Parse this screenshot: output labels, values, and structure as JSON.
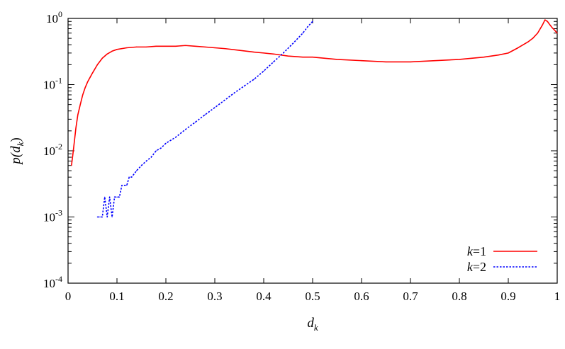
{
  "chart_data": {
    "type": "line",
    "title": "",
    "xlabel": "d_k",
    "ylabel": "p(d_k)",
    "x_scale": "linear",
    "y_scale": "log",
    "xlim": [
      0,
      1
    ],
    "ylim": [
      0.0001,
      1
    ],
    "grid": false,
    "legend_position": "bottom-right",
    "x_ticks": [
      "0",
      "0.1",
      "0.2",
      "0.3",
      "0.4",
      "0.5",
      "0.6",
      "0.7",
      "0.8",
      "0.9",
      "1"
    ],
    "x_tick_values": [
      0,
      0.1,
      0.2,
      0.3,
      0.4,
      0.5,
      0.6,
      0.7,
      0.8,
      0.9,
      1
    ],
    "y_ticks": [
      {
        "value": 0.0001,
        "base": "10",
        "exp": "-4"
      },
      {
        "value": 0.001,
        "base": "10",
        "exp": "-3"
      },
      {
        "value": 0.01,
        "base": "10",
        "exp": "-2"
      },
      {
        "value": 0.1,
        "base": "10",
        "exp": "-1"
      },
      {
        "value": 1,
        "base": "10",
        "exp": "0"
      }
    ],
    "series": [
      {
        "name": "k=1",
        "name_var": "k",
        "name_rest": "=1",
        "color": "#ff0000",
        "style": "solid",
        "x": [
          0.007,
          0.01,
          0.013,
          0.016,
          0.02,
          0.025,
          0.03,
          0.035,
          0.04,
          0.05,
          0.06,
          0.07,
          0.08,
          0.09,
          0.1,
          0.12,
          0.14,
          0.16,
          0.18,
          0.2,
          0.22,
          0.24,
          0.26,
          0.28,
          0.3,
          0.32,
          0.35,
          0.38,
          0.4,
          0.42,
          0.45,
          0.48,
          0.5,
          0.55,
          0.6,
          0.65,
          0.7,
          0.75,
          0.8,
          0.85,
          0.88,
          0.9,
          0.92,
          0.94,
          0.95,
          0.96,
          0.97,
          0.975,
          0.98,
          0.985,
          0.99,
          0.995,
          1.0
        ],
        "y": [
          0.006,
          0.009,
          0.014,
          0.022,
          0.035,
          0.05,
          0.07,
          0.09,
          0.11,
          0.15,
          0.2,
          0.25,
          0.29,
          0.32,
          0.34,
          0.36,
          0.37,
          0.37,
          0.38,
          0.38,
          0.38,
          0.39,
          0.38,
          0.37,
          0.36,
          0.35,
          0.33,
          0.31,
          0.3,
          0.29,
          0.27,
          0.26,
          0.26,
          0.24,
          0.23,
          0.22,
          0.22,
          0.23,
          0.24,
          0.26,
          0.28,
          0.3,
          0.36,
          0.44,
          0.5,
          0.6,
          0.8,
          0.95,
          0.9,
          0.8,
          0.72,
          0.66,
          0.6
        ]
      },
      {
        "name": "k=2",
        "name_var": "k",
        "name_rest": "=2",
        "color": "#0000ff",
        "style": "dotted",
        "x": [
          0.06,
          0.065,
          0.07,
          0.075,
          0.08,
          0.085,
          0.09,
          0.095,
          0.1,
          0.105,
          0.11,
          0.115,
          0.12,
          0.125,
          0.13,
          0.14,
          0.15,
          0.16,
          0.17,
          0.18,
          0.19,
          0.2,
          0.22,
          0.24,
          0.26,
          0.28,
          0.3,
          0.32,
          0.34,
          0.36,
          0.38,
          0.4,
          0.42,
          0.44,
          0.46,
          0.48,
          0.49,
          0.5
        ],
        "y": [
          0.001,
          0.001,
          0.001,
          0.002,
          0.001,
          0.002,
          0.001,
          0.002,
          0.002,
          0.002,
          0.003,
          0.003,
          0.003,
          0.004,
          0.004,
          0.005,
          0.006,
          0.007,
          0.008,
          0.01,
          0.011,
          0.013,
          0.016,
          0.021,
          0.027,
          0.035,
          0.045,
          0.058,
          0.075,
          0.095,
          0.12,
          0.16,
          0.22,
          0.3,
          0.42,
          0.6,
          0.75,
          0.9
        ]
      }
    ]
  }
}
